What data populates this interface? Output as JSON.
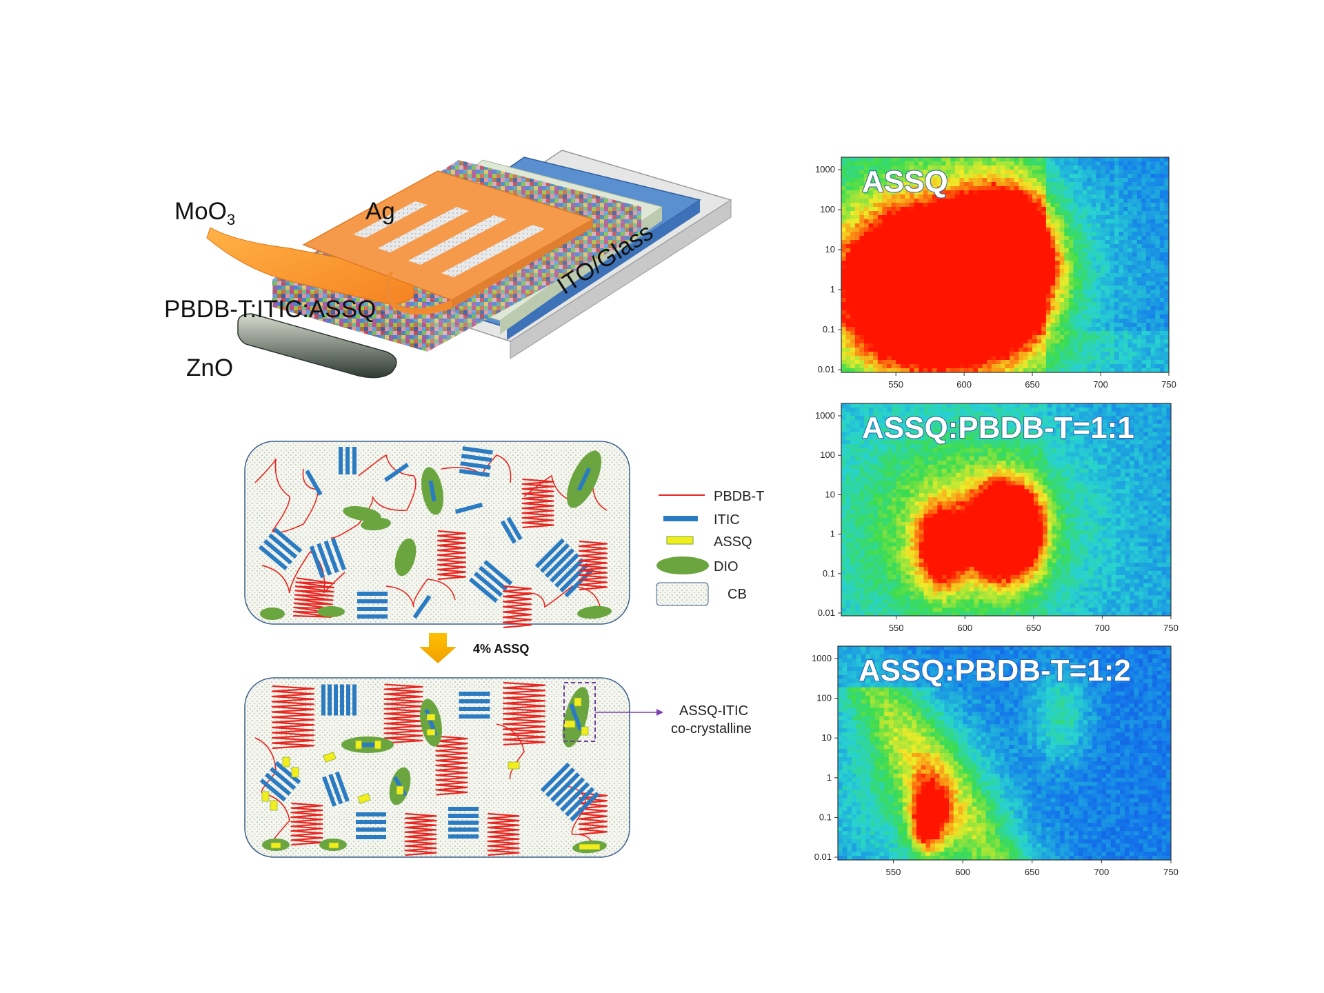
{
  "device": {
    "layers": [
      "MoO3",
      "Ag",
      "PBDB-T:ITIC:ASSQ",
      "ZnO",
      "ITO/Glass"
    ],
    "moo3_label": "MoO",
    "moo3_sub": "3",
    "ag_label": "Ag",
    "active_label": "PBDB-T:ITIC:ASSQ",
    "zno_label": "ZnO",
    "ito_label": "ITO/Glass"
  },
  "legend": {
    "items": [
      {
        "label": "PBDB-T",
        "color": "#e8251f"
      },
      {
        "label": "ITIC",
        "color": "#2b7bc3"
      },
      {
        "label": "ASSQ",
        "color": "#f2ee1c"
      },
      {
        "label": "DIO",
        "color": "#6aa540"
      },
      {
        "label": "CB",
        "color": "#f3f6ef"
      }
    ]
  },
  "arrow_label": "4% ASSQ",
  "callout": {
    "line1": "ASSQ-ITIC",
    "line2": "co-crystalline"
  },
  "heatmaps": [
    {
      "title": "ASSQ",
      "x_ticks": [
        "550",
        "600",
        "650",
        "700",
        "750"
      ],
      "y_ticks": [
        "1000",
        "100",
        "10",
        "1",
        "0.1",
        "0.01"
      ]
    },
    {
      "title": "ASSQ:PBDB-T=1:1",
      "x_ticks": [
        "550",
        "600",
        "650",
        "700",
        "750"
      ],
      "y_ticks": [
        "1000",
        "100",
        "10",
        "1",
        "0.1",
        "0.01"
      ]
    },
    {
      "title": "ASSQ:PBDB-T=1:2",
      "x_ticks": [
        "550",
        "600",
        "650",
        "700",
        "750"
      ],
      "y_ticks": [
        "1000",
        "100",
        "10",
        "1",
        "0.1",
        "0.01"
      ]
    }
  ],
  "colors": {
    "polymer": "#e8251f",
    "itic": "#2b7bc3",
    "assq": "#f2ee1c",
    "dio": "#6aa540",
    "ag": "#f59a4a",
    "heat_low": "#1e4fd8",
    "heat_high": "#ff1a00"
  }
}
